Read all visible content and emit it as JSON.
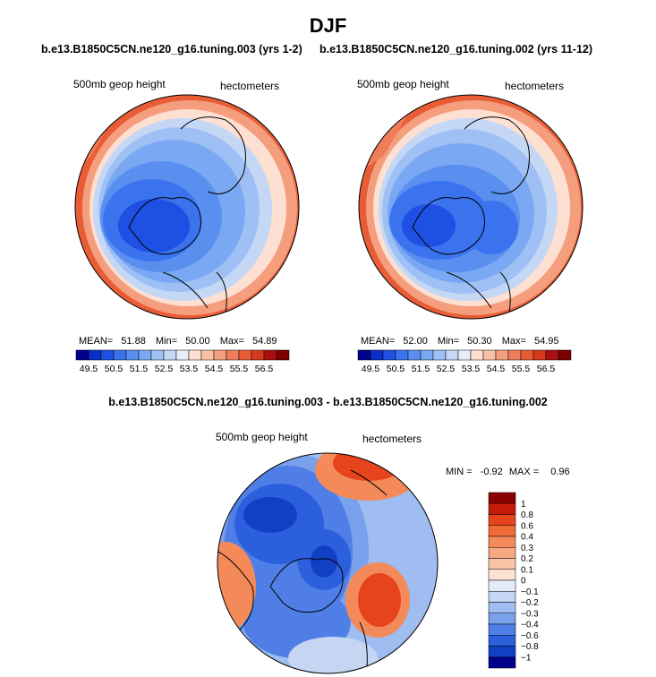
{
  "figure": {
    "title": "DJF"
  },
  "chart_data": [
    {
      "type": "heatmap",
      "title": "b.e13.B1850C5CN.ne120_g16.tuning.003 (yrs 1-2)",
      "field_label": "500mb geop height",
      "units_label": "hectometers",
      "projection": "polar stereographic (north)",
      "stats": {
        "mean_label": "MEAN=",
        "mean": "51.88",
        "min_label": "Min=",
        "min": "50.00",
        "max_label": "Max=",
        "max": "54.89"
      },
      "colorbar_levels": [
        "49.5",
        "50.5",
        "51.5",
        "52.5",
        "53.5",
        "54.5",
        "55.5",
        "56.5"
      ],
      "colorbar_colors": [
        "#00008b",
        "#0a2ec9",
        "#1e51e3",
        "#3b73ef",
        "#5a8ff0",
        "#7aa8f2",
        "#9ec0f4",
        "#c4d8f6",
        "#e8eef8",
        "#fde0d2",
        "#f9c0a6",
        "#f49e7e",
        "#ef7d5a",
        "#e85c36",
        "#d63a1e",
        "#aa1010",
        "#7d0000"
      ]
    },
    {
      "type": "heatmap",
      "title": "b.e13.B1850C5CN.ne120_g16.tuning.002 (yrs 11-12)",
      "field_label": "500mb geop height",
      "units_label": "hectometers",
      "projection": "polar stereographic (north)",
      "stats": {
        "mean_label": "MEAN=",
        "mean": "52.00",
        "min_label": "Min=",
        "min": "50.30",
        "max_label": "Max=",
        "max": "54.95"
      },
      "colorbar_levels": [
        "49.5",
        "50.5",
        "51.5",
        "52.5",
        "53.5",
        "54.5",
        "55.5",
        "56.5"
      ],
      "colorbar_colors": [
        "#00008b",
        "#0a2ec9",
        "#1e51e3",
        "#3b73ef",
        "#5a8ff0",
        "#7aa8f2",
        "#9ec0f4",
        "#c4d8f6",
        "#e8eef8",
        "#fde0d2",
        "#f9c0a6",
        "#f49e7e",
        "#ef7d5a",
        "#e85c36",
        "#d63a1e",
        "#aa1010",
        "#7d0000"
      ]
    },
    {
      "type": "heatmap",
      "title": "b.e13.B1850C5CN.ne120_g16.tuning.003 - b.e13.B1850C5CN.ne120_g16.tuning.002",
      "field_label": "500mb geop height",
      "units_label": "hectometers",
      "projection": "polar stereographic (north)",
      "stats": {
        "min_label": "MIN =",
        "min": "-0.92",
        "max_label": "MAX =",
        "max": "0.96"
      },
      "colorbar_levels": [
        "1",
        "0.8",
        "0.6",
        "0.4",
        "0.3",
        "0.2",
        "0.1",
        "0",
        "−0.1",
        "−0.2",
        "−0.3",
        "−0.4",
        "−0.6",
        "−0.8",
        "−1"
      ],
      "colorbar_colors": [
        "#8b0000",
        "#c41a0a",
        "#e6441c",
        "#f06a38",
        "#f48a5a",
        "#f7a882",
        "#fac4a8",
        "#fde2d4",
        "#e4ecf8",
        "#c4d6f4",
        "#9fbdf0",
        "#7aa1ec",
        "#4f7fe6",
        "#2c5fdc",
        "#1240c4",
        "#00008b"
      ]
    }
  ]
}
